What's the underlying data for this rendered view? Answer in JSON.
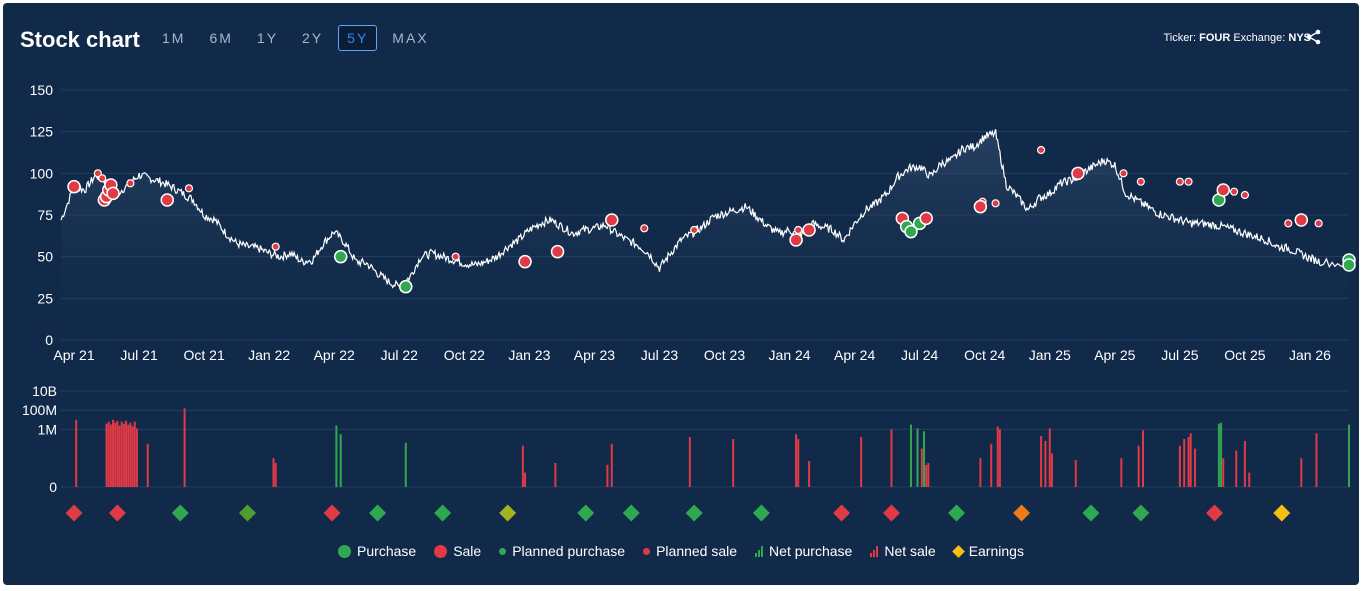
{
  "header": {
    "title": "Stock chart",
    "ranges": [
      "1M",
      "6M",
      "1Y",
      "2Y",
      "5Y",
      "MAX"
    ],
    "active_range": "5Y",
    "ticker_label": "Ticker:",
    "ticker_value": "FOUR",
    "exchange_label": "Exchange:",
    "exchange_value": "NYS"
  },
  "colors": {
    "background": "#112a4a",
    "purchase": "#2fa84f",
    "sale": "#e03a46",
    "earnings": "#f5c012",
    "price_line": "#ffffff"
  },
  "legend": [
    {
      "key": "purchase",
      "label": "Purchase"
    },
    {
      "key": "sale",
      "label": "Sale"
    },
    {
      "key": "planned_purchase",
      "label": "Planned purchase"
    },
    {
      "key": "planned_sale",
      "label": "Planned sale"
    },
    {
      "key": "net_purchase",
      "label": "Net purchase"
    },
    {
      "key": "net_sale",
      "label": "Net sale"
    },
    {
      "key": "earnings",
      "label": "Earnings"
    }
  ],
  "chart_data": {
    "type": "line",
    "title": "Stock chart",
    "x_tick_labels": [
      "Apr 21",
      "Jul 21",
      "Oct 21",
      "Jan 22",
      "Apr 22",
      "Jul 22",
      "Oct 22",
      "Jan 23",
      "Apr 23",
      "Jul 23",
      "Oct 23",
      "Jan 24",
      "Apr 24",
      "Jul 24",
      "Oct 24",
      "Jan 25",
      "Apr 25",
      "Jul 25",
      "Oct 25",
      "Jan 26"
    ],
    "x_range_months": [
      -0.6,
      58.8
    ],
    "price": {
      "ylim": [
        0,
        150
      ],
      "y_ticks": [
        0,
        25,
        50,
        75,
        100,
        125,
        150
      ],
      "series_monthly_approx": [
        [
          -0.6,
          72
        ],
        [
          0,
          92
        ],
        [
          0.5,
          90
        ],
        [
          1,
          99
        ],
        [
          1.5,
          95
        ],
        [
          2,
          88
        ],
        [
          2.5,
          93
        ],
        [
          3,
          99
        ],
        [
          3.5,
          97
        ],
        [
          4,
          95
        ],
        [
          4.5,
          92
        ],
        [
          5,
          88
        ],
        [
          5.5,
          84
        ],
        [
          6,
          75
        ],
        [
          6.5,
          72
        ],
        [
          7,
          64
        ],
        [
          7.5,
          58
        ],
        [
          8,
          56
        ],
        [
          8.5,
          55
        ],
        [
          9,
          52
        ],
        [
          9.5,
          50
        ],
        [
          10,
          52
        ],
        [
          10.5,
          47
        ],
        [
          11,
          48
        ],
        [
          11.5,
          58
        ],
        [
          12,
          65
        ],
        [
          12.5,
          58
        ],
        [
          13,
          47
        ],
        [
          13.5,
          46
        ],
        [
          14,
          40
        ],
        [
          14.5,
          35
        ],
        [
          15,
          32
        ],
        [
          15.5,
          38
        ],
        [
          16,
          50
        ],
        [
          16.5,
          52
        ],
        [
          17,
          50
        ],
        [
          17.5,
          48
        ],
        [
          18,
          46
        ],
        [
          18.5,
          45
        ],
        [
          19,
          47
        ],
        [
          19.5,
          50
        ],
        [
          20,
          56
        ],
        [
          20.5,
          60
        ],
        [
          21,
          66
        ],
        [
          21.5,
          70
        ],
        [
          22,
          72
        ],
        [
          22.5,
          68
        ],
        [
          23,
          64
        ],
        [
          23.5,
          66
        ],
        [
          24,
          67
        ],
        [
          24.5,
          69
        ],
        [
          25,
          64
        ],
        [
          25.5,
          60
        ],
        [
          26,
          57
        ],
        [
          26.5,
          52
        ],
        [
          27,
          43
        ],
        [
          27.5,
          52
        ],
        [
          28,
          60
        ],
        [
          28.5,
          64
        ],
        [
          29,
          68
        ],
        [
          29.5,
          74
        ],
        [
          30,
          76
        ],
        [
          30.5,
          78
        ],
        [
          31,
          80
        ],
        [
          31.5,
          74
        ],
        [
          32,
          68
        ],
        [
          32.5,
          64
        ],
        [
          33,
          66
        ],
        [
          33.5,
          62
        ],
        [
          34,
          70
        ],
        [
          34.5,
          68
        ],
        [
          35,
          66
        ],
        [
          35.5,
          60
        ],
        [
          36,
          70
        ],
        [
          36.5,
          78
        ],
        [
          37,
          82
        ],
        [
          37.5,
          88
        ],
        [
          38,
          98
        ],
        [
          38.5,
          103
        ],
        [
          39,
          104
        ],
        [
          39.5,
          98
        ],
        [
          40,
          106
        ],
        [
          40.5,
          108
        ],
        [
          41,
          115
        ],
        [
          41.5,
          116
        ],
        [
          42,
          122
        ],
        [
          42.5,
          124
        ],
        [
          43,
          93
        ],
        [
          43.5,
          86
        ],
        [
          44,
          78
        ],
        [
          44.5,
          85
        ],
        [
          45,
          88
        ],
        [
          45.5,
          94
        ],
        [
          46,
          96
        ],
        [
          46.5,
          100
        ],
        [
          47,
          104
        ],
        [
          47.5,
          108
        ],
        [
          48,
          105
        ],
        [
          48.5,
          88
        ],
        [
          49,
          84
        ],
        [
          49.5,
          80
        ],
        [
          50,
          76
        ],
        [
          50.5,
          74
        ],
        [
          51,
          72
        ],
        [
          51.5,
          70
        ],
        [
          52,
          70
        ],
        [
          52.5,
          69
        ],
        [
          53,
          68
        ],
        [
          53.5,
          66
        ],
        [
          54,
          64
        ],
        [
          54.5,
          62
        ],
        [
          55,
          60
        ],
        [
          55.5,
          56
        ],
        [
          56,
          55
        ],
        [
          56.5,
          52
        ],
        [
          57,
          49
        ],
        [
          57.5,
          47
        ],
        [
          58.8,
          45
        ]
      ],
      "transactions": [
        {
          "m": 0,
          "p": 92,
          "t": "sale"
        },
        {
          "m": 1.4,
          "p": 84,
          "t": "sale"
        },
        {
          "m": 1.5,
          "p": 86,
          "t": "sale"
        },
        {
          "m": 1.6,
          "p": 90,
          "t": "sale"
        },
        {
          "m": 1.7,
          "p": 93,
          "t": "sale"
        },
        {
          "m": 1.8,
          "p": 88,
          "t": "sale"
        },
        {
          "m": 4.3,
          "p": 84,
          "t": "sale"
        },
        {
          "m": 12.3,
          "p": 50,
          "t": "purchase"
        },
        {
          "m": 15.3,
          "p": 32,
          "t": "purchase"
        },
        {
          "m": 20.8,
          "p": 47,
          "t": "sale"
        },
        {
          "m": 22.3,
          "p": 53,
          "t": "sale"
        },
        {
          "m": 24.8,
          "p": 72,
          "t": "sale"
        },
        {
          "m": 33.3,
          "p": 60,
          "t": "sale"
        },
        {
          "m": 33.9,
          "p": 66,
          "t": "sale"
        },
        {
          "m": 38.2,
          "p": 73,
          "t": "sale"
        },
        {
          "m": 38.4,
          "p": 68,
          "t": "purchase"
        },
        {
          "m": 38.6,
          "p": 65,
          "t": "purchase"
        },
        {
          "m": 39,
          "p": 70,
          "t": "purchase"
        },
        {
          "m": 39.3,
          "p": 73,
          "t": "sale"
        },
        {
          "m": 41.8,
          "p": 80,
          "t": "sale"
        },
        {
          "m": 46.3,
          "p": 100,
          "t": "sale"
        },
        {
          "m": 52.8,
          "p": 84,
          "t": "purchase"
        },
        {
          "m": 53,
          "p": 90,
          "t": "sale"
        },
        {
          "m": 56.6,
          "p": 72,
          "t": "sale"
        },
        {
          "m": 58.8,
          "p": 48,
          "t": "purchase"
        },
        {
          "m": 58.8,
          "p": 45,
          "t": "purchase"
        }
      ],
      "planned_sales": [
        {
          "m": 1.1,
          "p": 100
        },
        {
          "m": 1.3,
          "p": 97
        },
        {
          "m": 2.6,
          "p": 94
        },
        {
          "m": 5.3,
          "p": 91
        },
        {
          "m": 9.3,
          "p": 56
        },
        {
          "m": 17.6,
          "p": 50
        },
        {
          "m": 26.3,
          "p": 67
        },
        {
          "m": 28.6,
          "p": 66
        },
        {
          "m": 33.4,
          "p": 66
        },
        {
          "m": 41.9,
          "p": 83
        },
        {
          "m": 42.5,
          "p": 82
        },
        {
          "m": 44.6,
          "p": 114
        },
        {
          "m": 46.2,
          "p": 98
        },
        {
          "m": 48.4,
          "p": 100
        },
        {
          "m": 49.2,
          "p": 95
        },
        {
          "m": 51,
          "p": 95
        },
        {
          "m": 51.4,
          "p": 95
        },
        {
          "m": 53.5,
          "p": 89
        },
        {
          "m": 54,
          "p": 87
        },
        {
          "m": 56,
          "p": 70
        },
        {
          "m": 57.4,
          "p": 70
        }
      ]
    },
    "volume": {
      "y_tick_labels": [
        "0",
        "1M",
        "100M",
        "10B"
      ],
      "y_log_min": 0,
      "y_log_max": 10,
      "bars": [
        {
          "m": 0.1,
          "v": 7,
          "t": "net_sale"
        },
        {
          "m": 1.5,
          "v": 6.6,
          "t": "net_sale"
        },
        {
          "m": 1.6,
          "v": 6.8,
          "t": "net_sale"
        },
        {
          "m": 1.7,
          "v": 6.5,
          "t": "net_sale"
        },
        {
          "m": 1.8,
          "v": 7,
          "t": "net_sale"
        },
        {
          "m": 1.9,
          "v": 6.7,
          "t": "net_sale"
        },
        {
          "m": 2.0,
          "v": 6.9,
          "t": "net_sale"
        },
        {
          "m": 2.1,
          "v": 6.4,
          "t": "net_sale"
        },
        {
          "m": 2.2,
          "v": 6.8,
          "t": "net_sale"
        },
        {
          "m": 2.3,
          "v": 6.6,
          "t": "net_sale"
        },
        {
          "m": 2.4,
          "v": 6.9,
          "t": "net_sale"
        },
        {
          "m": 2.5,
          "v": 6.5,
          "t": "net_sale"
        },
        {
          "m": 2.6,
          "v": 6.7,
          "t": "net_sale"
        },
        {
          "m": 2.7,
          "v": 6.3,
          "t": "net_sale"
        },
        {
          "m": 2.8,
          "v": 6.8,
          "t": "net_sale"
        },
        {
          "m": 2.9,
          "v": 6.1,
          "t": "net_sale"
        },
        {
          "m": 3.4,
          "v": 4.5,
          "t": "net_sale"
        },
        {
          "m": 5.1,
          "v": 8.2,
          "t": "net_sale"
        },
        {
          "m": 9.2,
          "v": 3.0,
          "t": "net_sale"
        },
        {
          "m": 9.3,
          "v": 2.5,
          "t": "net_sale"
        },
        {
          "m": 12.1,
          "v": 6.4,
          "t": "net_purchase"
        },
        {
          "m": 12.3,
          "v": 5.5,
          "t": "net_purchase"
        },
        {
          "m": 15.3,
          "v": 4.6,
          "t": "net_purchase"
        },
        {
          "m": 20.7,
          "v": 4.3,
          "t": "net_sale"
        },
        {
          "m": 20.8,
          "v": 1.5,
          "t": "net_sale"
        },
        {
          "m": 22.2,
          "v": 2.5,
          "t": "net_sale"
        },
        {
          "m": 24.6,
          "v": 2.3,
          "t": "net_sale"
        },
        {
          "m": 24.8,
          "v": 4.5,
          "t": "net_sale"
        },
        {
          "m": 28.4,
          "v": 5.2,
          "t": "net_sale"
        },
        {
          "m": 30.4,
          "v": 5.0,
          "t": "net_sale"
        },
        {
          "m": 33.3,
          "v": 5.5,
          "t": "net_sale"
        },
        {
          "m": 33.4,
          "v": 5.0,
          "t": "net_sale"
        },
        {
          "m": 33.9,
          "v": 2.7,
          "t": "net_sale"
        },
        {
          "m": 36.3,
          "v": 5.2,
          "t": "net_sale"
        },
        {
          "m": 37.7,
          "v": 6.0,
          "t": "net_sale"
        },
        {
          "m": 38.6,
          "v": 6.5,
          "t": "net_purchase"
        },
        {
          "m": 38.9,
          "v": 6.1,
          "t": "net_purchase"
        },
        {
          "m": 39.1,
          "v": 4.0,
          "t": "net_sale"
        },
        {
          "m": 39.2,
          "v": 5.8,
          "t": "net_purchase"
        },
        {
          "m": 39.3,
          "v": 2.3,
          "t": "net_sale"
        },
        {
          "m": 39.4,
          "v": 2.5,
          "t": "net_sale"
        },
        {
          "m": 41.8,
          "v": 3.0,
          "t": "net_sale"
        },
        {
          "m": 42.3,
          "v": 4.5,
          "t": "net_sale"
        },
        {
          "m": 42.6,
          "v": 6.3,
          "t": "net_sale"
        },
        {
          "m": 42.7,
          "v": 6.0,
          "t": "net_sale"
        },
        {
          "m": 44.6,
          "v": 5.3,
          "t": "net_sale"
        },
        {
          "m": 44.8,
          "v": 4.8,
          "t": "net_sale"
        },
        {
          "m": 45.0,
          "v": 6.1,
          "t": "net_sale"
        },
        {
          "m": 45.1,
          "v": 3.5,
          "t": "net_sale"
        },
        {
          "m": 46.2,
          "v": 2.8,
          "t": "net_sale"
        },
        {
          "m": 48.3,
          "v": 3.0,
          "t": "net_sale"
        },
        {
          "m": 49.1,
          "v": 4.3,
          "t": "net_sale"
        },
        {
          "m": 49.3,
          "v": 5.9,
          "t": "net_sale"
        },
        {
          "m": 51.0,
          "v": 4.3,
          "t": "net_sale"
        },
        {
          "m": 51.2,
          "v": 5.0,
          "t": "net_sale"
        },
        {
          "m": 51.4,
          "v": 5.2,
          "t": "net_sale"
        },
        {
          "m": 51.5,
          "v": 5.6,
          "t": "net_sale"
        },
        {
          "m": 51.7,
          "v": 4.0,
          "t": "net_sale"
        },
        {
          "m": 52.8,
          "v": 6.6,
          "t": "net_purchase"
        },
        {
          "m": 52.9,
          "v": 6.7,
          "t": "net_purchase"
        },
        {
          "m": 53.0,
          "v": 3.0,
          "t": "net_sale"
        },
        {
          "m": 53.6,
          "v": 3.8,
          "t": "net_sale"
        },
        {
          "m": 54.0,
          "v": 4.8,
          "t": "net_sale"
        },
        {
          "m": 54.2,
          "v": 1.5,
          "t": "net_sale"
        },
        {
          "m": 56.6,
          "v": 3.0,
          "t": "net_sale"
        },
        {
          "m": 57.3,
          "v": 5.6,
          "t": "net_sale"
        },
        {
          "m": 58.8,
          "v": 6.5,
          "t": "net_purchase"
        }
      ]
    },
    "earnings_markers": [
      {
        "m": 0,
        "c": "#e03a46"
      },
      {
        "m": 2.0,
        "c": "#e03a46"
      },
      {
        "m": 4.9,
        "c": "#2fa84f"
      },
      {
        "m": 8.0,
        "c": "#4f9d2f"
      },
      {
        "m": 11.9,
        "c": "#e03a46"
      },
      {
        "m": 14.0,
        "c": "#2fa84f"
      },
      {
        "m": 17.0,
        "c": "#2fa84f"
      },
      {
        "m": 20.0,
        "c": "#a3b324"
      },
      {
        "m": 23.6,
        "c": "#2fa84f"
      },
      {
        "m": 25.7,
        "c": "#2fa84f"
      },
      {
        "m": 28.6,
        "c": "#2fa84f"
      },
      {
        "m": 31.7,
        "c": "#2fa84f"
      },
      {
        "m": 35.4,
        "c": "#e03a46"
      },
      {
        "m": 37.7,
        "c": "#e03a46"
      },
      {
        "m": 40.7,
        "c": "#2fa84f"
      },
      {
        "m": 43.7,
        "c": "#f07a1a"
      },
      {
        "m": 46.9,
        "c": "#2fa84f"
      },
      {
        "m": 49.2,
        "c": "#2fa84f"
      },
      {
        "m": 52.6,
        "c": "#e03a46"
      },
      {
        "m": 55.7,
        "c": "#f5c012"
      }
    ]
  }
}
